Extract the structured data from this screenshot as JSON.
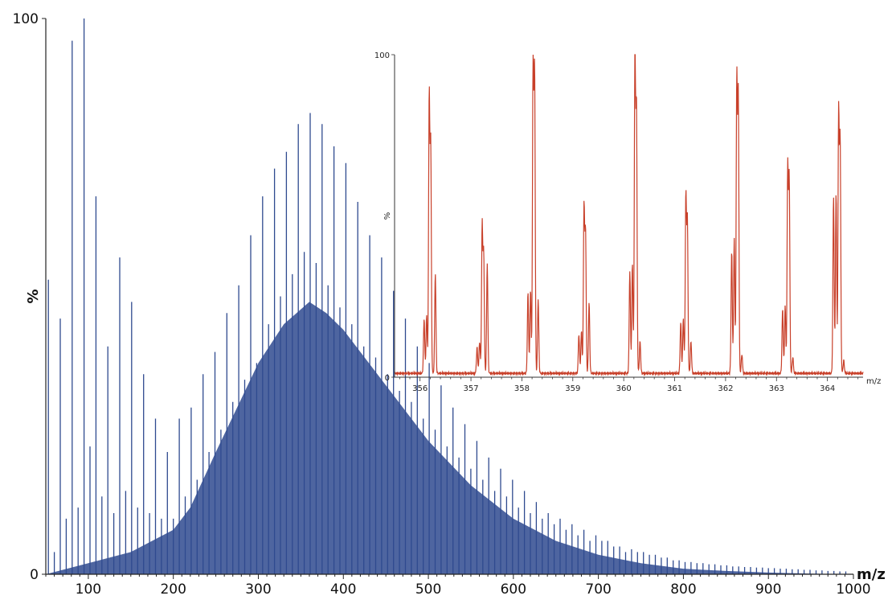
{
  "chart_data": [
    {
      "id": "main-spectrum",
      "type": "bar",
      "title": "",
      "xlabel": "m/z",
      "ylabel": "%",
      "xlim": [
        50,
        1000
      ],
      "ylim": [
        0,
        100
      ],
      "x_ticks": [
        100,
        200,
        300,
        400,
        500,
        600,
        700,
        800,
        900,
        1000
      ],
      "y_ticks": [
        0,
        100
      ],
      "ylabel_position_value": 50,
      "color": "#2F4A8F",
      "envelope_color": "#D6DBEA",
      "x": [
        53,
        60,
        67,
        74,
        81,
        88,
        95,
        102,
        109,
        116,
        123,
        130,
        137,
        144,
        151,
        158,
        165,
        172,
        179,
        186,
        193,
        200,
        207,
        214,
        221,
        228,
        235,
        242,
        249,
        256,
        263,
        270,
        277,
        284,
        291,
        298,
        305,
        312,
        319,
        326,
        333,
        340,
        347,
        354,
        361,
        368,
        375,
        382,
        389,
        396,
        403,
        410,
        417,
        424,
        431,
        438,
        445,
        452,
        459,
        466,
        473,
        480,
        487,
        494,
        501,
        508,
        515,
        522,
        529,
        536,
        543,
        550,
        557,
        564,
        571,
        578,
        585,
        592,
        599,
        606,
        613,
        620,
        627,
        634,
        641,
        648,
        655,
        662,
        669,
        676,
        683,
        690,
        697,
        704,
        711,
        718,
        725,
        732,
        739,
        746,
        753,
        760,
        767,
        774,
        781,
        788,
        795,
        802,
        809,
        816,
        823,
        830,
        837,
        844,
        851,
        858,
        865,
        872,
        879,
        886,
        893,
        900,
        907,
        914,
        921,
        928,
        935,
        942,
        949,
        956,
        963,
        970,
        977,
        984,
        991
      ],
      "values": [
        53,
        4,
        46,
        10,
        96,
        12,
        100,
        23,
        68,
        14,
        41,
        11,
        57,
        15,
        49,
        12,
        36,
        11,
        28,
        10,
        22,
        10,
        28,
        14,
        30,
        17,
        36,
        22,
        40,
        26,
        47,
        31,
        52,
        35,
        61,
        38,
        68,
        45,
        73,
        50,
        76,
        54,
        81,
        58,
        83,
        56,
        81,
        52,
        77,
        48,
        74,
        45,
        67,
        41,
        61,
        39,
        57,
        36,
        51,
        33,
        46,
        31,
        41,
        28,
        38,
        26,
        34,
        23,
        30,
        21,
        27,
        19,
        24,
        17,
        21,
        15,
        19,
        14,
        17,
        12,
        15,
        11,
        13,
        10,
        11,
        9,
        10,
        8,
        9,
        7,
        8,
        6,
        7,
        6,
        6,
        5,
        5,
        4,
        4.5,
        4,
        4,
        3.5,
        3.5,
        3,
        3,
        2.5,
        2.5,
        2.2,
        2.2,
        2,
        2,
        1.8,
        1.8,
        1.6,
        1.6,
        1.4,
        1.4,
        1.3,
        1.3,
        1.2,
        1.2,
        1.1,
        1.1,
        1,
        1,
        0.9,
        0.9,
        0.8,
        0.8,
        0.7,
        0.7,
        0.6,
        0.6,
        0.5,
        0.5
      ],
      "dense_envelope": {
        "x": [
          50,
          100,
          150,
          200,
          220,
          250,
          300,
          330,
          360,
          380,
          400,
          450,
          500,
          550,
          600,
          650,
          700,
          750,
          800,
          850,
          900,
          950,
          1000
        ],
        "values": [
          0,
          2,
          4,
          8,
          12,
          22,
          38,
          45,
          49,
          47,
          44,
          34,
          24,
          16,
          10,
          6,
          3.5,
          2,
          1,
          0.6,
          0.3,
          0.1,
          0
        ]
      }
    },
    {
      "id": "inset-spectrum",
      "type": "line",
      "title": "",
      "xlabel": "m/z",
      "ylabel": "%",
      "xlim": [
        355.5,
        364.7
      ],
      "ylim": [
        0,
        100
      ],
      "x_ticks": [
        356,
        357,
        358,
        359,
        360,
        361,
        362,
        363,
        364
      ],
      "y_ticks": [
        0,
        100
      ],
      "ylabel_position_value": 50,
      "color": "#C8402A",
      "peaks": [
        {
          "x": 356.18,
          "y": 86,
          "sub": [
            [
              356.08,
              17
            ],
            [
              356.13,
              18
            ],
            [
              356.21,
              71
            ],
            [
              356.3,
              31
            ]
          ]
        },
        {
          "x": 357.22,
          "y": 46,
          "sub": [
            [
              357.12,
              8
            ],
            [
              357.17,
              10
            ],
            [
              357.25,
              37
            ],
            [
              357.32,
              34
            ]
          ]
        },
        {
          "x": 358.22,
          "y": 97,
          "sub": [
            [
              358.12,
              25
            ],
            [
              358.17,
              26
            ],
            [
              358.25,
              93
            ],
            [
              358.32,
              23
            ]
          ]
        },
        {
          "x": 359.22,
          "y": 52,
          "sub": [
            [
              359.12,
              12
            ],
            [
              359.17,
              13
            ],
            [
              359.25,
              44
            ],
            [
              359.32,
              22
            ]
          ]
        },
        {
          "x": 360.22,
          "y": 100,
          "sub": [
            [
              360.12,
              32
            ],
            [
              360.17,
              34
            ],
            [
              360.25,
              82
            ],
            [
              360.32,
              10
            ]
          ]
        },
        {
          "x": 361.22,
          "y": 55,
          "sub": [
            [
              361.12,
              16
            ],
            [
              361.17,
              17
            ],
            [
              361.25,
              47
            ],
            [
              361.32,
              10
            ]
          ]
        },
        {
          "x": 362.22,
          "y": 91,
          "sub": [
            [
              362.12,
              38
            ],
            [
              362.17,
              42
            ],
            [
              362.25,
              85
            ],
            [
              362.32,
              6
            ]
          ]
        },
        {
          "x": 363.22,
          "y": 64,
          "sub": [
            [
              363.12,
              20
            ],
            [
              363.17,
              21
            ],
            [
              363.25,
              60
            ],
            [
              363.32,
              5
            ]
          ]
        },
        {
          "x": 364.22,
          "y": 81,
          "sub": [
            [
              364.12,
              55
            ],
            [
              364.17,
              56
            ],
            [
              364.25,
              72
            ],
            [
              364.32,
              4
            ]
          ]
        }
      ]
    }
  ]
}
